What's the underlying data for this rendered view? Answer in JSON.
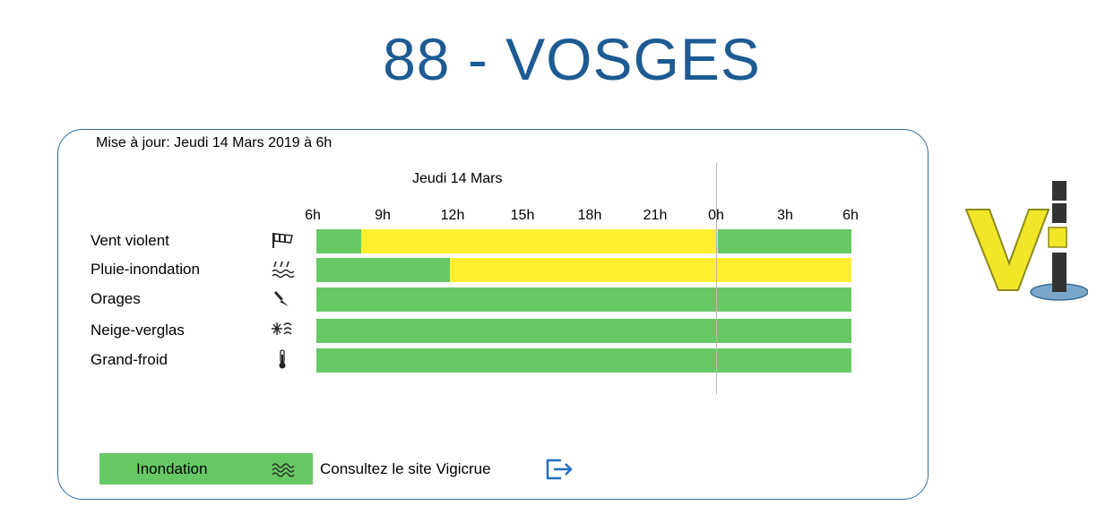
{
  "header": {
    "title": "88 - VOSGES"
  },
  "panel": {
    "update_text": "Mise à jour: Jeudi 14 Mars 2019 à 6h",
    "day_label": "Jeudi 14 Mars",
    "ticks": [
      "6h",
      "9h",
      "12h",
      "15h",
      "18h",
      "21h",
      "0h",
      "3h",
      "6h"
    ]
  },
  "colors": {
    "green": "#66c966",
    "yellow": "#ffef2e",
    "accent": "#1d5b92"
  },
  "rows": [
    {
      "label": "Vent violent",
      "icon": "wind-sock-icon",
      "segments": [
        {
          "level": "green",
          "hours": 2
        },
        {
          "level": "yellow",
          "hours": 16
        },
        {
          "level": "green",
          "hours": 6
        }
      ]
    },
    {
      "label": "Pluie-inondation",
      "icon": "rain-flood-icon",
      "segments": [
        {
          "level": "green",
          "hours": 6
        },
        {
          "level": "yellow",
          "hours": 18
        }
      ]
    },
    {
      "label": "Orages",
      "icon": "lightning-icon",
      "segments": [
        {
          "level": "green",
          "hours": 24
        }
      ]
    },
    {
      "label": "Neige-verglas",
      "icon": "snow-ice-icon",
      "segments": [
        {
          "level": "green",
          "hours": 24
        }
      ]
    },
    {
      "label": "Grand-froid",
      "icon": "thermometer-icon",
      "segments": [
        {
          "level": "green",
          "hours": 24
        }
      ]
    }
  ],
  "legend": {
    "inondation_label": "Inondation",
    "inondation_level": "green",
    "wave_icon": "waves-icon",
    "consult_text": "Consultez le site Vigicrue",
    "link_icon": "external-link-icon"
  },
  "logo": {
    "name": "vigilance-logo-icon"
  }
}
